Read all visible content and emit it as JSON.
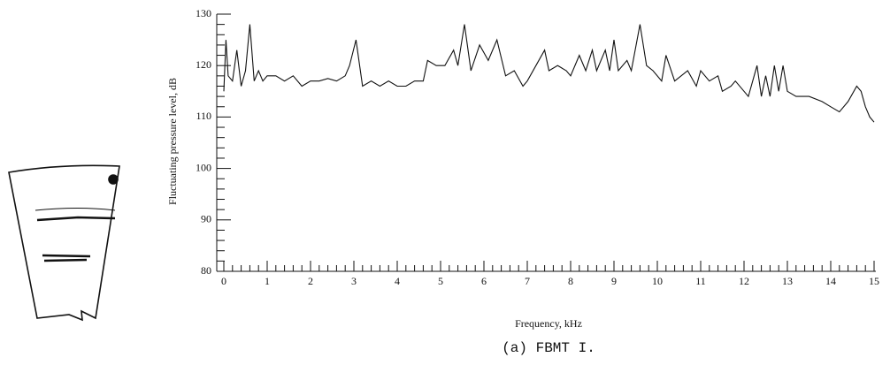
{
  "chart_data": {
    "type": "line",
    "caption": "(a) FBMT I.",
    "xlabel": "Frequency, kHz",
    "ylabel": "Fluctuating pressure level, dB",
    "xlim": [
      0,
      15
    ],
    "ylim": [
      80,
      130
    ],
    "xticks": [
      0,
      1,
      2,
      3,
      4,
      5,
      6,
      7,
      8,
      9,
      10,
      11,
      12,
      13,
      14,
      15
    ],
    "yticks": [
      80,
      90,
      100,
      110,
      120,
      130
    ],
    "xminorticks": [
      0.2,
      0.4,
      0.6,
      0.8,
      1.2,
      1.4,
      1.6,
      1.8,
      2.2,
      2.4,
      2.6,
      2.8,
      3.2,
      3.4,
      3.6,
      3.8,
      4.2,
      4.4,
      4.6,
      4.8,
      5.2,
      5.4,
      5.6,
      5.8,
      6.2,
      6.4,
      6.6,
      6.8,
      7.2,
      7.4,
      7.6,
      7.8,
      8.2,
      8.4,
      8.6,
      8.8,
      9.2,
      9.4,
      9.6,
      9.8,
      10.2,
      10.4,
      10.6,
      10.8,
      11.2,
      11.4,
      11.6,
      11.8,
      12.2,
      12.4,
      12.6,
      12.8,
      13.2,
      13.4,
      13.6,
      13.8,
      14.2,
      14.4,
      14.6,
      14.8
    ],
    "yminorticks": [
      82,
      84,
      86,
      88,
      92,
      94,
      96,
      98,
      102,
      104,
      106,
      108,
      112,
      114,
      116,
      118,
      122,
      124,
      126,
      128
    ],
    "color": "#111111",
    "x": [
      0,
      0.05,
      0.1,
      0.2,
      0.3,
      0.4,
      0.5,
      0.6,
      0.7,
      0.8,
      0.9,
      1.0,
      1.2,
      1.4,
      1.6,
      1.8,
      2.0,
      2.2,
      2.4,
      2.6,
      2.8,
      2.9,
      3.05,
      3.2,
      3.4,
      3.6,
      3.8,
      4.0,
      4.2,
      4.4,
      4.6,
      4.7,
      4.9,
      5.1,
      5.3,
      5.4,
      5.55,
      5.7,
      5.9,
      6.1,
      6.3,
      6.5,
      6.7,
      6.9,
      7.0,
      7.2,
      7.4,
      7.5,
      7.7,
      7.9,
      8.0,
      8.2,
      8.35,
      8.5,
      8.6,
      8.8,
      8.9,
      9.0,
      9.1,
      9.3,
      9.4,
      9.6,
      9.75,
      9.9,
      10.1,
      10.2,
      10.4,
      10.7,
      10.9,
      11.0,
      11.2,
      11.4,
      11.5,
      11.7,
      11.8,
      12.0,
      12.1,
      12.3,
      12.4,
      12.5,
      12.6,
      12.7,
      12.8,
      12.9,
      13.0,
      13.2,
      13.5,
      13.8,
      14.0,
      14.2,
      14.4,
      14.6,
      14.7,
      14.8,
      14.9,
      15.0
    ],
    "values": [
      115,
      125,
      118,
      117,
      123,
      116,
      119,
      128,
      117,
      119,
      117,
      118,
      118,
      117,
      118,
      116,
      117,
      117,
      117.5,
      117,
      118,
      120,
      125,
      116,
      117,
      116,
      117,
      116,
      116,
      117,
      117,
      121,
      120,
      120,
      123,
      120,
      128,
      119,
      124,
      121,
      125,
      118,
      119,
      116,
      117,
      120,
      123,
      119,
      120,
      119,
      118,
      122,
      119,
      123,
      119,
      123,
      119,
      125,
      119,
      121,
      119,
      128,
      120,
      119,
      117,
      122,
      117,
      119,
      116,
      119,
      117,
      118,
      115,
      116,
      117,
      115,
      114,
      120,
      114,
      118,
      114,
      120,
      115,
      120,
      115,
      114,
      114,
      113,
      112,
      111,
      113,
      116,
      115,
      112,
      110,
      109
    ]
  }
}
